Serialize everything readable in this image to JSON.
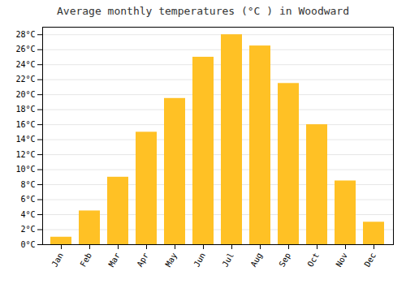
{
  "chart_data": {
    "type": "bar",
    "title": "Average monthly temperatures (°C ) in Woodward",
    "categories": [
      "Jan",
      "Feb",
      "Mar",
      "Apr",
      "May",
      "Jun",
      "Jul",
      "Aug",
      "Sep",
      "Oct",
      "Nov",
      "Dec"
    ],
    "values": [
      1.0,
      4.5,
      9.0,
      15.0,
      19.5,
      25.0,
      28.0,
      26.5,
      21.5,
      16.0,
      8.5,
      3.0
    ],
    "color": "#FFC125",
    "ylim": [
      0,
      29
    ],
    "yticks": [
      {
        "value": 0,
        "label": "0°C"
      },
      {
        "value": 2,
        "label": "2°C"
      },
      {
        "value": 4,
        "label": "4°C"
      },
      {
        "value": 6,
        "label": "6°C"
      },
      {
        "value": 8,
        "label": "8°C"
      },
      {
        "value": 10,
        "label": "10°C"
      },
      {
        "value": 12,
        "label": "12°C"
      },
      {
        "value": 14,
        "label": "14°C"
      },
      {
        "value": 16,
        "label": "16°C"
      },
      {
        "value": 18,
        "label": "18°C"
      },
      {
        "value": 20,
        "label": "20°C"
      },
      {
        "value": 22,
        "label": "22°C"
      },
      {
        "value": 24,
        "label": "24°C"
      },
      {
        "value": 26,
        "label": "26°C"
      },
      {
        "value": 28,
        "label": "28°C"
      }
    ],
    "grid": true
  }
}
